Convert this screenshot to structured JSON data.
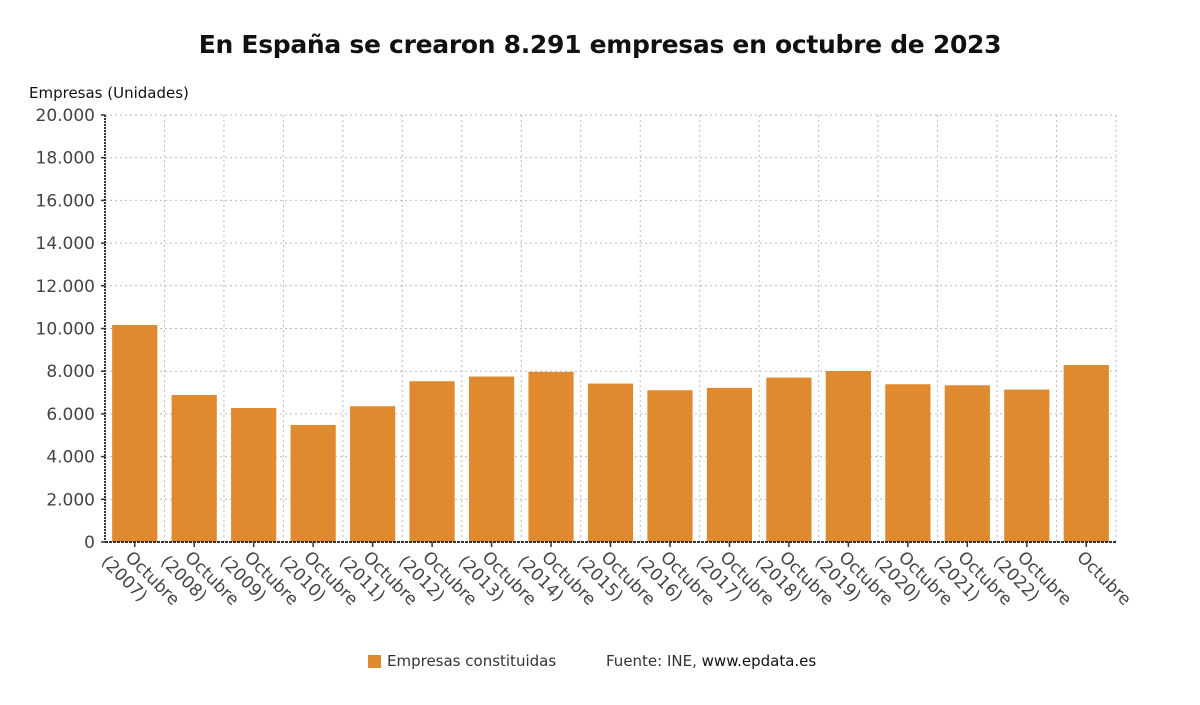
{
  "chart_data": {
    "type": "bar",
    "title": "En España se crearon 8.291 empresas en octubre de 2023",
    "ylabel": "Empresas (Unidades)",
    "xlabel": "",
    "ylim": [
      0,
      20000
    ],
    "yticks": [
      0,
      2000,
      4000,
      6000,
      8000,
      10000,
      12000,
      14000,
      16000,
      18000,
      20000
    ],
    "ytick_labels": [
      "0",
      "2.000",
      "4.000",
      "6.000",
      "8.000",
      "10.000",
      "12.000",
      "14.000",
      "16.000",
      "18.000",
      "20.000"
    ],
    "grid": true,
    "categories": [
      [
        "Octubre",
        "(2007)"
      ],
      [
        "Octubre",
        "(2008)"
      ],
      [
        "Octubre",
        "(2009)"
      ],
      [
        "Octubre",
        "(2010)"
      ],
      [
        "Octubre",
        "(2011)"
      ],
      [
        "Octubre",
        "(2012)"
      ],
      [
        "Octubre",
        "(2013)"
      ],
      [
        "Octubre",
        "(2014)"
      ],
      [
        "Octubre",
        "(2015)"
      ],
      [
        "Octubre",
        "(2016)"
      ],
      [
        "Octubre",
        "(2017)"
      ],
      [
        "Octubre",
        "(2018)"
      ],
      [
        "Octubre",
        "(2019)"
      ],
      [
        "Octubre",
        "(2020)"
      ],
      [
        "Octubre",
        "(2021)"
      ],
      [
        "Octubre",
        "(2022)"
      ],
      [
        "Octubre"
      ]
    ],
    "series": [
      {
        "name": "Empresas constituidas",
        "color": "#e08a30",
        "values": [
          10164,
          6885,
          6276,
          5480,
          6360,
          7530,
          7750,
          7970,
          7420,
          7110,
          7220,
          7700,
          8010,
          7390,
          7340,
          7140,
          8291
        ]
      }
    ],
    "legend_position": "bottom",
    "source_label": "Fuente: INE,",
    "source_site": "www.epdata.es"
  }
}
